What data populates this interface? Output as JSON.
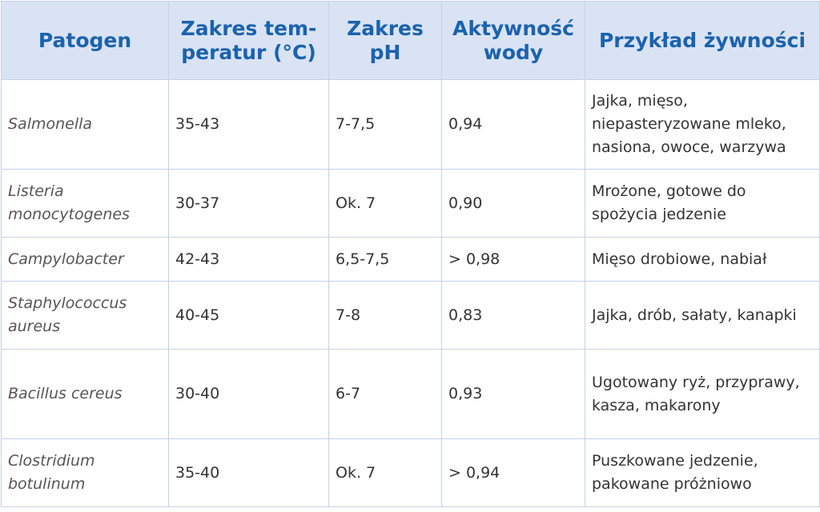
{
  "headers": [
    "Patogen",
    "Zakres tem-peratur (°C)",
    "Zakres pH",
    "Aktywność wody",
    "Przykład żywności"
  ],
  "rows": [
    {
      "pathogen": "Salmonella",
      "temp": "35-43",
      "ph": "7-7,5",
      "aw": "0,94",
      "food": "Jajka, mięso, niepasteryzowane mleko, nasiona, owoce, warzywa"
    },
    {
      "pathogen": "Listeria monocytogenes",
      "temp": "30-37",
      "ph": "Ok. 7",
      "aw": "0,90",
      "food": "Mrożone, gotowe do spożycia jedzenie"
    },
    {
      "pathogen": "Campylobacter",
      "temp": "42-43",
      "ph": "6,5-7,5",
      "aw": "> 0,98",
      "food": "Mięso drobiowe, nabiał"
    },
    {
      "pathogen": "Staphylococcus aureus",
      "temp": "40-45",
      "ph": "7-8",
      "aw": "0,83",
      "food": "Jajka, drób, sałaty, kanapki"
    },
    {
      "pathogen": "Bacillus cereus",
      "temp": "30-40",
      "ph": "6-7",
      "aw": "0,93",
      "food": "Ugotowany ryż, przyprawy, kasza, makarony"
    },
    {
      "pathogen": "Clostridium botulinum",
      "temp": "35-40",
      "ph": "Ok. 7",
      "aw": "> 0,94",
      "food": "Puszkowane jedzenie, pakowane próżniowo"
    }
  ],
  "colors": {
    "header_bg": "#d9e3f4",
    "header_text": "#1c62ae",
    "border": "#c7d1e4",
    "body_text": "#333333"
  }
}
